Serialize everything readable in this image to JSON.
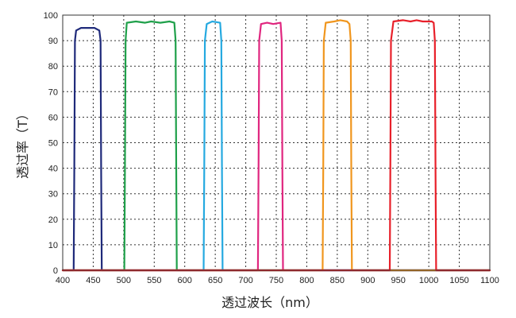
{
  "chart_data": {
    "type": "line",
    "title": "",
    "xlabel": "透过波长（nm）",
    "ylabel": "透过率（T）",
    "xlim": [
      400,
      1100
    ],
    "ylim": [
      0,
      100
    ],
    "xticks": [
      400,
      450,
      500,
      550,
      600,
      650,
      700,
      750,
      800,
      850,
      900,
      950,
      1000,
      1050,
      1100
    ],
    "yticks": [
      0,
      10,
      20,
      30,
      40,
      50,
      60,
      70,
      80,
      90,
      100
    ],
    "grid": true,
    "legend": "none",
    "series": [
      {
        "color": "#1f2a7a",
        "points": [
          [
            400,
            0
          ],
          [
            418,
            0
          ],
          [
            419,
            40
          ],
          [
            420,
            90
          ],
          [
            422,
            94
          ],
          [
            430,
            95
          ],
          [
            440,
            95
          ],
          [
            452,
            95
          ],
          [
            460,
            94
          ],
          [
            462,
            90
          ],
          [
            463,
            40
          ],
          [
            464,
            0
          ],
          [
            1100,
            0
          ]
        ]
      },
      {
        "color": "#1fa04a",
        "points": [
          [
            400,
            0
          ],
          [
            501,
            0
          ],
          [
            502,
            40
          ],
          [
            503,
            90
          ],
          [
            505,
            97
          ],
          [
            520,
            97.5
          ],
          [
            535,
            97
          ],
          [
            545,
            97.5
          ],
          [
            560,
            97
          ],
          [
            575,
            97.5
          ],
          [
            583,
            97
          ],
          [
            585,
            90
          ],
          [
            586,
            40
          ],
          [
            587,
            0
          ],
          [
            1100,
            0
          ]
        ]
      },
      {
        "color": "#25a9e0",
        "points": [
          [
            400,
            0
          ],
          [
            631,
            0
          ],
          [
            632,
            40
          ],
          [
            633,
            90
          ],
          [
            636,
            96.5
          ],
          [
            645,
            97.5
          ],
          [
            658,
            97
          ],
          [
            660,
            90
          ],
          [
            661,
            40
          ],
          [
            662,
            0
          ],
          [
            1100,
            0
          ]
        ]
      },
      {
        "color": "#e0267f",
        "points": [
          [
            400,
            0
          ],
          [
            720,
            0
          ],
          [
            721,
            40
          ],
          [
            722,
            90
          ],
          [
            725,
            96.5
          ],
          [
            735,
            97
          ],
          [
            745,
            96.5
          ],
          [
            757,
            97
          ],
          [
            759,
            90
          ],
          [
            760,
            40
          ],
          [
            761,
            0
          ],
          [
            1100,
            0
          ]
        ]
      },
      {
        "color": "#f0961e",
        "points": [
          [
            400,
            0
          ],
          [
            826,
            0
          ],
          [
            827,
            40
          ],
          [
            828,
            90
          ],
          [
            831,
            97
          ],
          [
            845,
            97.5
          ],
          [
            855,
            98
          ],
          [
            866,
            97.5
          ],
          [
            870,
            96.5
          ],
          [
            872,
            90
          ],
          [
            873,
            40
          ],
          [
            874,
            0
          ],
          [
            1100,
            0
          ]
        ]
      },
      {
        "color": "#e8202a",
        "points": [
          [
            400,
            0
          ],
          [
            936,
            0
          ],
          [
            937,
            40
          ],
          [
            938,
            90
          ],
          [
            942,
            97.5
          ],
          [
            958,
            98
          ],
          [
            970,
            97.5
          ],
          [
            980,
            98
          ],
          [
            990,
            97.5
          ],
          [
            1005,
            97.5
          ],
          [
            1008,
            97
          ],
          [
            1010,
            90
          ],
          [
            1011,
            40
          ],
          [
            1012,
            0
          ],
          [
            1100,
            0
          ]
        ]
      }
    ]
  }
}
